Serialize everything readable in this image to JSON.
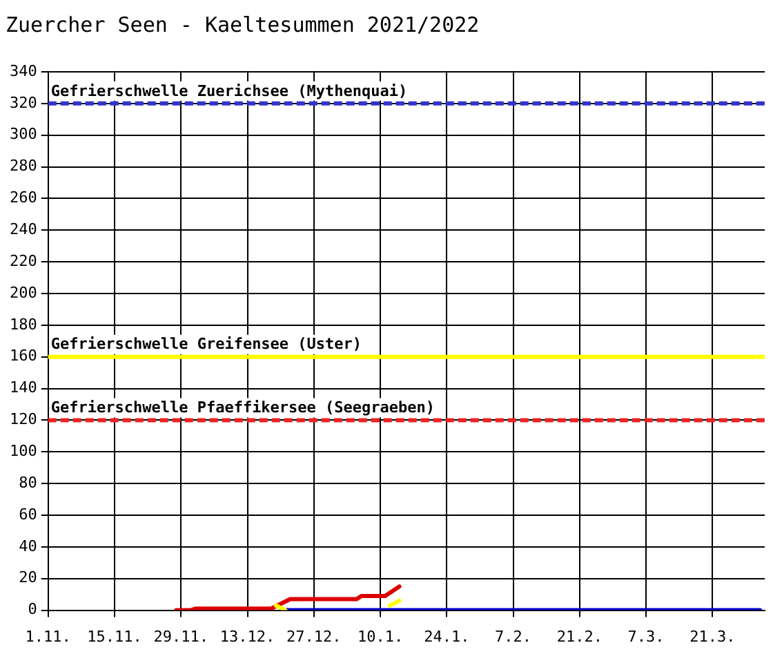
{
  "chart_data": {
    "type": "line",
    "title": "Zuercher Seen - Kaeltesummen 2021/2022",
    "xlim": [
      "2021-11-01",
      "2022-04-01"
    ],
    "xticks": [
      {
        "value": "2021-11-01",
        "label": "1.11."
      },
      {
        "value": "2021-11-15",
        "label": "15.11."
      },
      {
        "value": "2021-11-29",
        "label": "29.11."
      },
      {
        "value": "2021-12-13",
        "label": "13.12."
      },
      {
        "value": "2021-12-27",
        "label": "27.12."
      },
      {
        "value": "2022-01-10",
        "label": "10.1."
      },
      {
        "value": "2022-01-24",
        "label": "24.1."
      },
      {
        "value": "2022-02-07",
        "label": "7.2."
      },
      {
        "value": "2022-02-21",
        "label": "21.2."
      },
      {
        "value": "2022-03-07",
        "label": "7.3."
      },
      {
        "value": "2022-03-21",
        "label": "21.3."
      }
    ],
    "ylim": [
      0,
      340
    ],
    "yticks": [
      0,
      20,
      40,
      60,
      80,
      100,
      120,
      140,
      160,
      180,
      200,
      220,
      240,
      260,
      280,
      300,
      320,
      340
    ],
    "grid": true,
    "legend": false,
    "marker": "none",
    "line_style": "solid",
    "series": [
      {
        "color": "#ffff00",
        "x": [
          "2021-12-19",
          "2021-12-21",
          "2021-12-31",
          "2022-01-12",
          "2022-01-14"
        ],
        "values": [
          3,
          0,
          null,
          3,
          6
        ]
      },
      {
        "color": "#0000cc",
        "x": [
          "2021-12-21",
          "2022-03-31"
        ],
        "values": [
          0,
          0
        ]
      },
      {
        "color": "#dd0000",
        "x": [
          "2021-11-28",
          "2021-12-01",
          "2021-12-02",
          "2021-12-18",
          "2021-12-22",
          "2022-01-05",
          "2022-01-06",
          "2022-01-11",
          "2022-01-14"
        ],
        "values": [
          0,
          0,
          1,
          1,
          7,
          7,
          9,
          9,
          15
        ]
      }
    ],
    "ref_lines": [
      {
        "axis": "y",
        "value": 320,
        "label": "Gefrierschwelle Zuerichsee (Mythenquai)",
        "color": "#3333cc",
        "line_style": "dashed"
      },
      {
        "axis": "y",
        "value": 160,
        "label": "Gefrierschwelle Greifensee (Uster)",
        "color": "#ffff00",
        "line_style": "solid"
      },
      {
        "axis": "y",
        "value": 120,
        "label": "Gefrierschwelle Pfaeffikersee (Seegraeben)",
        "color": "#ee2222",
        "line_style": "dashed"
      }
    ]
  }
}
